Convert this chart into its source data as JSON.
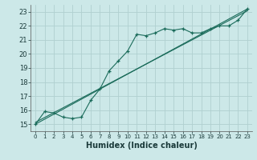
{
  "xlabel": "Humidex (Indice chaleur)",
  "bg_color": "#cce8e8",
  "grid_color": "#b0d0d0",
  "line_color": "#1a6b5a",
  "xlim": [
    -0.5,
    23.5
  ],
  "ylim": [
    14.5,
    23.5
  ],
  "xticks": [
    0,
    1,
    2,
    3,
    4,
    5,
    6,
    7,
    8,
    9,
    10,
    11,
    12,
    13,
    14,
    15,
    16,
    17,
    18,
    19,
    20,
    21,
    22,
    23
  ],
  "yticks": [
    15,
    16,
    17,
    18,
    19,
    20,
    21,
    22,
    23
  ],
  "series1_x": [
    0,
    1,
    2,
    3,
    4,
    5,
    6,
    7,
    8,
    9,
    10,
    11,
    12,
    13,
    14,
    15,
    16,
    17,
    18,
    19,
    20,
    21,
    22,
    23
  ],
  "series1_y": [
    15.0,
    15.9,
    15.8,
    15.5,
    15.4,
    15.5,
    16.7,
    17.5,
    18.8,
    19.5,
    20.2,
    21.4,
    21.3,
    21.5,
    21.8,
    21.7,
    21.8,
    21.5,
    21.5,
    21.8,
    22.0,
    22.0,
    22.4,
    23.2
  ],
  "series2_x": [
    0,
    23
  ],
  "series2_y": [
    15.0,
    23.2
  ],
  "series3_x": [
    0,
    23
  ],
  "series3_y": [
    15.13,
    23.07
  ],
  "xlabel_fontsize": 7,
  "ytick_fontsize": 6,
  "xtick_fontsize": 5
}
